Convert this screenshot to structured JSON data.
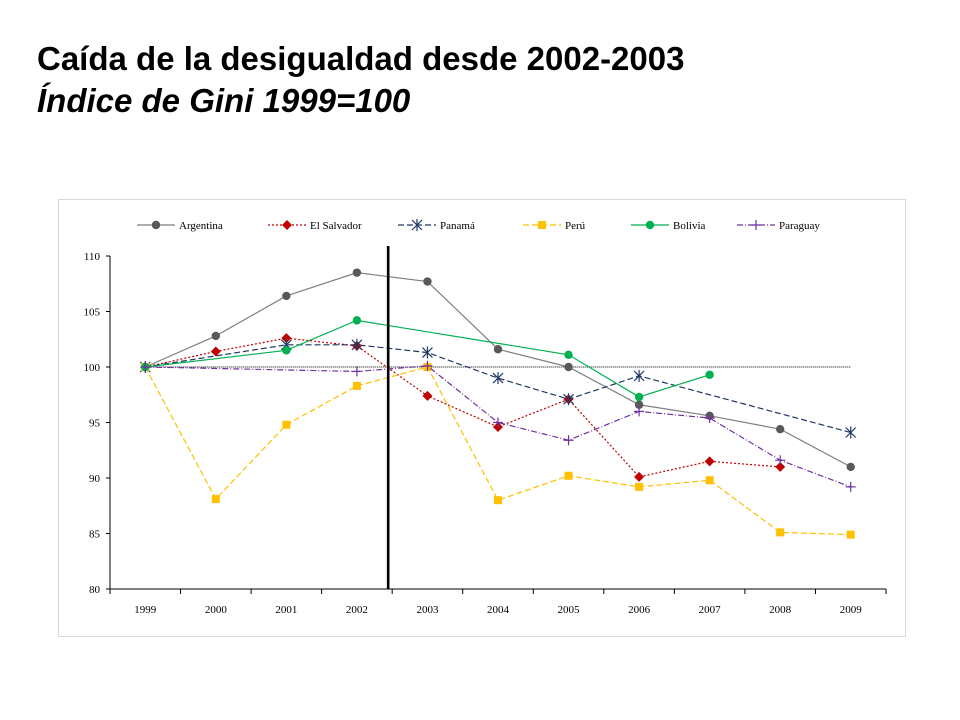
{
  "title": {
    "main": "Caída de la desigualdad desde 2002-2003",
    "sub": "Índice de Gini 1999=100"
  },
  "chart_data": {
    "type": "line",
    "categories": [
      "1999",
      "2000",
      "2001",
      "2002",
      "2003",
      "2004",
      "2005",
      "2006",
      "2007",
      "2008",
      "2009"
    ],
    "ylim": [
      80,
      110
    ],
    "yticks": [
      80,
      85,
      90,
      95,
      100,
      105,
      110
    ],
    "grid": false,
    "legend_position": "top",
    "reference_line": {
      "y": 100,
      "style": "dotted"
    },
    "marker_line": {
      "between": [
        "2002",
        "2003"
      ],
      "style": "solid-black"
    },
    "series": [
      {
        "name": "Argentina",
        "color": "#7f7f7f",
        "dash": "",
        "marker": "circle",
        "marker_color": "#595959",
        "points": [
          [
            0,
            100
          ],
          [
            1,
            102.8
          ],
          [
            2,
            106.4
          ],
          [
            3,
            108.5
          ],
          [
            4,
            107.7
          ],
          [
            5,
            101.6
          ],
          [
            6,
            100.0
          ],
          [
            7,
            96.6
          ],
          [
            8,
            95.6
          ],
          [
            9,
            94.4
          ],
          [
            10,
            91.0
          ]
        ]
      },
      {
        "name": "El Salvador",
        "color": "#c00000",
        "dash": "2,2",
        "marker": "diamond",
        "marker_color": "#c00000",
        "points": [
          [
            0,
            100
          ],
          [
            1,
            101.4
          ],
          [
            2,
            102.6
          ],
          [
            3,
            101.9
          ],
          [
            4,
            97.4
          ],
          [
            5,
            94.6
          ],
          [
            6,
            97.1
          ],
          [
            7,
            90.1
          ],
          [
            8,
            91.5
          ],
          [
            9,
            91.0
          ]
        ]
      },
      {
        "name": "Panamá",
        "color": "#1f3864",
        "dash": "6,3",
        "marker": "star",
        "marker_color": "#1f3864",
        "points": [
          [
            0,
            100
          ],
          [
            2,
            102.0
          ],
          [
            3,
            102.0
          ],
          [
            4,
            101.3
          ],
          [
            5,
            99.0
          ],
          [
            6,
            97.1
          ],
          [
            7,
            99.2
          ],
          [
            10,
            94.1
          ]
        ]
      },
      {
        "name": "Perú",
        "color": "#ffc000",
        "dash": "6,3",
        "marker": "square",
        "marker_color": "#ffc000",
        "points": [
          [
            0,
            100
          ],
          [
            1,
            88.1
          ],
          [
            2,
            94.8
          ],
          [
            3,
            98.3
          ],
          [
            4,
            100.0
          ],
          [
            5,
            88.0
          ],
          [
            6,
            90.2
          ],
          [
            7,
            89.2
          ],
          [
            8,
            89.8
          ],
          [
            9,
            85.1
          ],
          [
            10,
            84.9
          ]
        ]
      },
      {
        "name": "Bolivia",
        "color": "#00b050",
        "dash": "",
        "marker": "circle",
        "marker_color": "#00b050",
        "points": [
          [
            0,
            100
          ],
          [
            2,
            101.5
          ],
          [
            3,
            104.2
          ],
          [
            6,
            101.1
          ],
          [
            7,
            97.3
          ],
          [
            8,
            99.3
          ]
        ]
      },
      {
        "name": "Paraguay",
        "color": "#7030a0",
        "dash": "6,2,1,2",
        "marker": "plus",
        "marker_color": "#7030a0",
        "points": [
          [
            0,
            100
          ],
          [
            3,
            99.6
          ],
          [
            4,
            100.1
          ],
          [
            5,
            95.0
          ],
          [
            6,
            93.4
          ],
          [
            7,
            96.0
          ],
          [
            8,
            95.4
          ],
          [
            9,
            91.6
          ],
          [
            10,
            89.2
          ]
        ]
      }
    ]
  }
}
